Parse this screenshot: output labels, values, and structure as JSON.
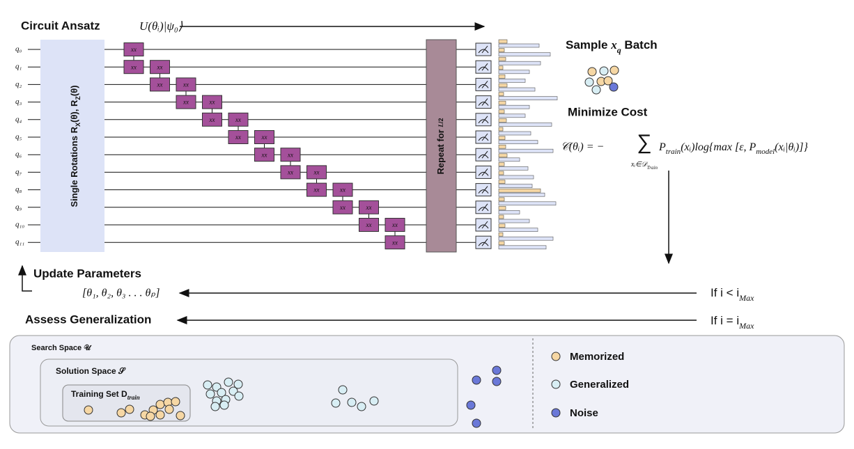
{
  "header": {
    "title": "Circuit Ansatz",
    "operator": "U(θᵢ)|ψ₀⟩"
  },
  "circuit": {
    "qubits": [
      "q₀",
      "q₁",
      "q₂",
      "q₃",
      "q₄",
      "q₅",
      "q₆",
      "q₇",
      "q₈",
      "q₉",
      "q₁₀",
      "q₁₁"
    ],
    "rotations": {
      "a": "Single Rotations R",
      "s1": "X",
      "b": "(θ), R",
      "s2": "Z",
      "c": "(θ)"
    },
    "gate_label": "xx",
    "repeat": {
      "text": "Repeat for ",
      "num": "L",
      "den": "2"
    }
  },
  "sample": {
    "a": "Sample ",
    "var": "x",
    "sub": "q",
    "b": " Batch"
  },
  "minimize": "Minimize Cost",
  "cost": {
    "lhs": "𝒞(θᵢ) = −",
    "sum": "∑",
    "sum_sub": "xᵢ∈𝒟",
    "sum_sub2": "Train",
    "p": "P",
    "p_sub": "train",
    "mid": "(xᵢ)log{max [ε, P",
    "p2_sub": "model",
    "end": "(xᵢ|θᵢ)]}"
  },
  "update": {
    "title": "Update Parameters",
    "params": "[θ₁, θ₂, θ₃ . . . θₚ]",
    "cond": "If  i < i",
    "cond_sub": "Max"
  },
  "assess": {
    "title": "Assess Generalization",
    "cond": "If  i = i",
    "cond_sub": "Max"
  },
  "spaces": {
    "search": "Search Space 𝒰",
    "solution": "Solution Space 𝒮",
    "training": "Training Set D",
    "training_sub": "train"
  },
  "legend": [
    "Memorized",
    "Generalized",
    "Noise"
  ]
}
